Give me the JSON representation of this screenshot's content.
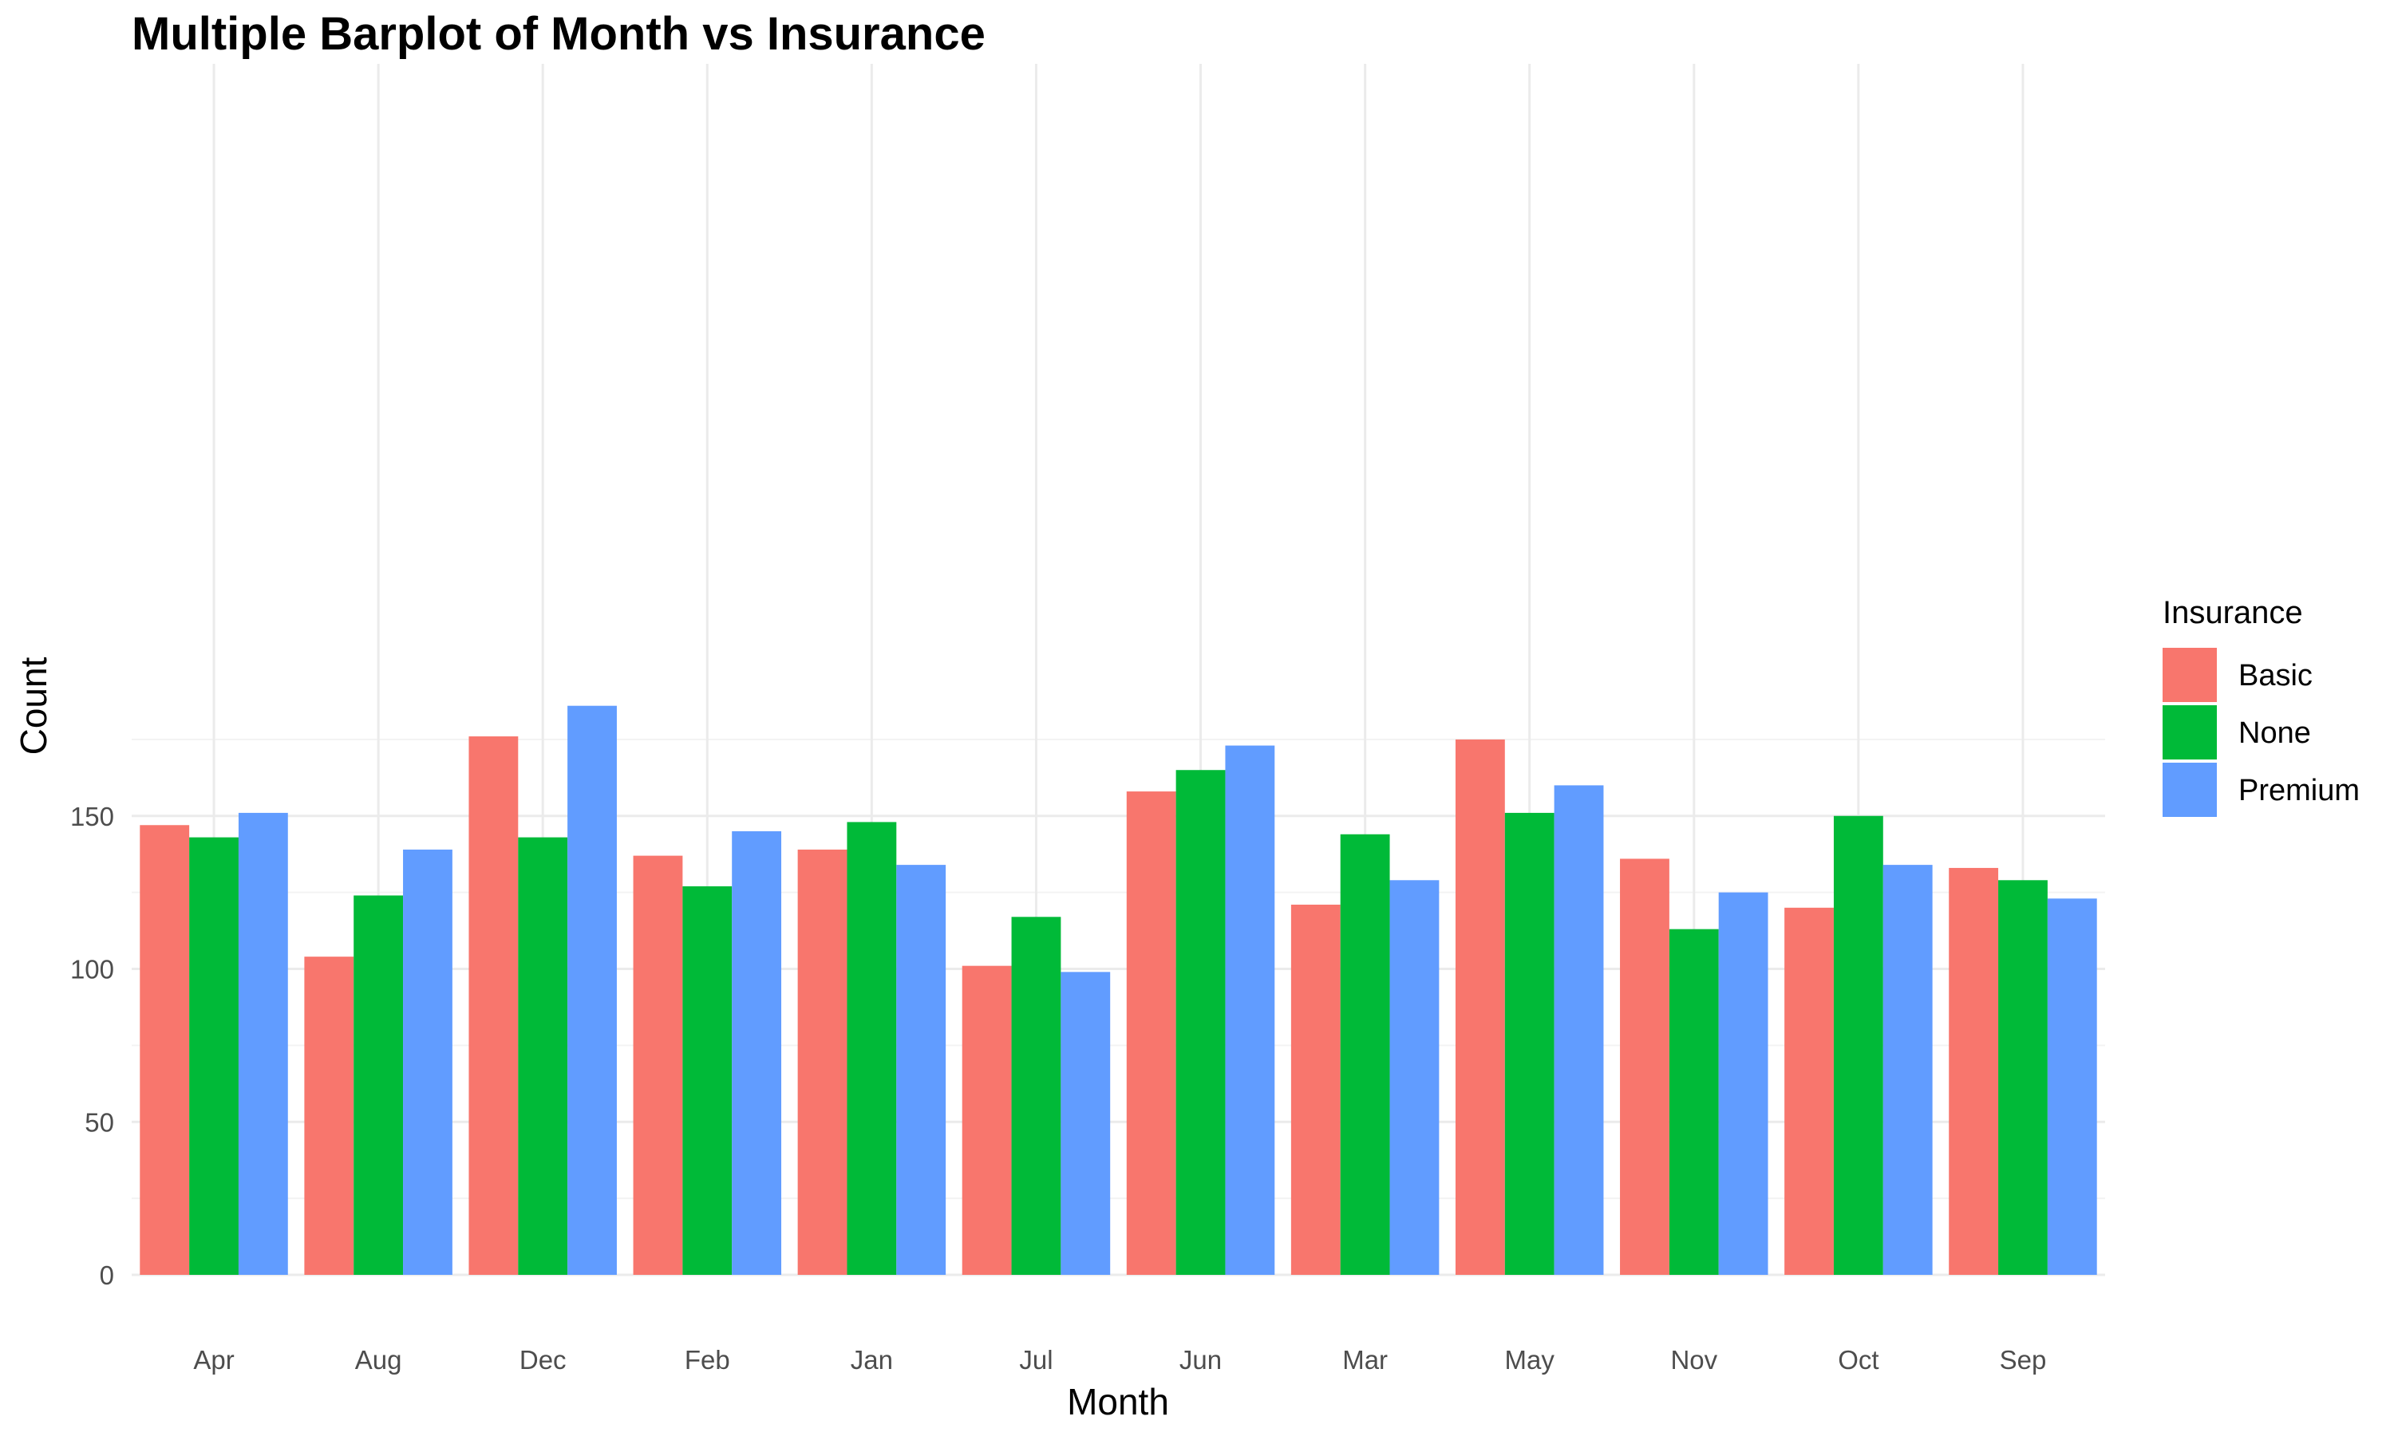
{
  "chart_data": {
    "type": "bar",
    "title": "Multiple Barplot of Month vs Insurance",
    "xlabel": "Month",
    "ylabel": "Count",
    "categories": [
      "Apr",
      "Aug",
      "Dec",
      "Feb",
      "Jan",
      "Jul",
      "Jun",
      "Mar",
      "May",
      "Nov",
      "Oct",
      "Sep"
    ],
    "series": [
      {
        "name": "Basic",
        "color": "#F8766D",
        "values": [
          147,
          104,
          176,
          137,
          139,
          101,
          158,
          121,
          175,
          136,
          120,
          133
        ]
      },
      {
        "name": "None",
        "color": "#00BA38",
        "values": [
          143,
          124,
          143,
          127,
          148,
          117,
          165,
          144,
          151,
          113,
          150,
          129
        ]
      },
      {
        "name": "Premium",
        "color": "#619CFF",
        "values": [
          151,
          139,
          186,
          145,
          134,
          99,
          173,
          129,
          160,
          125,
          134,
          123
        ]
      }
    ],
    "ylim": [
      0,
      195
    ],
    "yticks": [
      0,
      50,
      100,
      150
    ],
    "grid": true,
    "legend": {
      "title": "Insurance",
      "position": "right"
    }
  }
}
